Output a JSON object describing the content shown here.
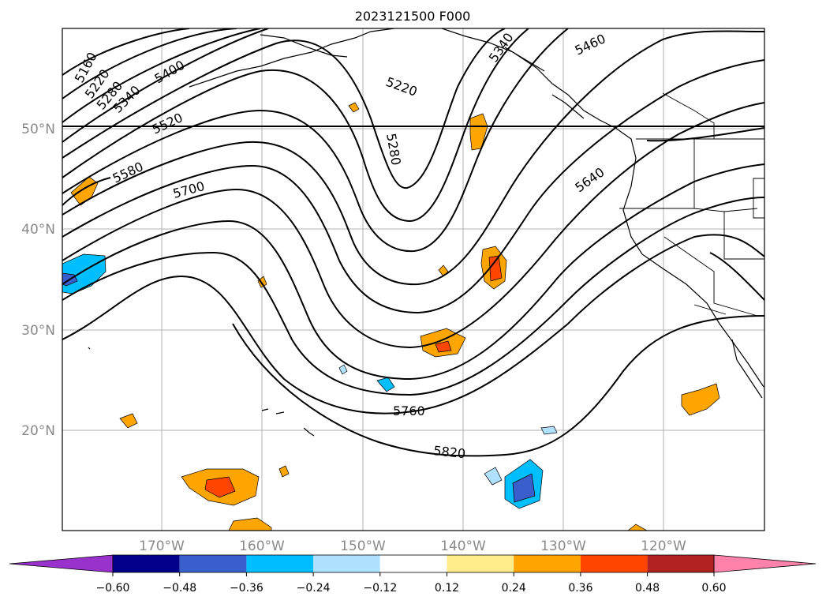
{
  "title": "2023121500 F000",
  "lat_labels": [
    "50°N",
    "40°N",
    "30°N",
    "20°N"
  ],
  "lon_labels": [
    "170°W",
    "160°W",
    "150°W",
    "140°W",
    "130°W",
    "120°W"
  ],
  "contour_labels": [
    "5160",
    "5220",
    "5280",
    "5340",
    "5400",
    "5520",
    "5580",
    "5700",
    "5220",
    "5280",
    "5340",
    "5460",
    "5640",
    "5760",
    "5820"
  ],
  "colorbar": {
    "ticks": [
      "−0.60",
      "−0.48",
      "−0.36",
      "−0.24",
      "−0.12",
      "0.12",
      "0.24",
      "0.36",
      "0.48",
      "0.60"
    ],
    "colors": [
      "#9932cc",
      "#00008b",
      "#3a5fcd",
      "#00bfff",
      "#b0e2ff",
      "#ffffff",
      "#ffec8b",
      "#ffa500",
      "#ff4500",
      "#b22222",
      "#ff82ab"
    ]
  }
}
